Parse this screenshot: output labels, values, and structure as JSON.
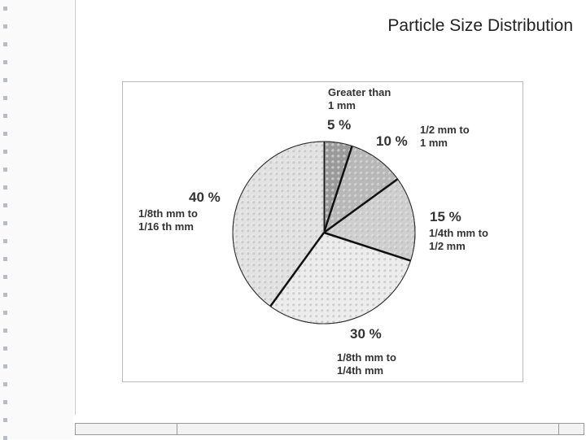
{
  "chart_data": {
    "type": "pie",
    "title": "Particle Size Distribution",
    "categories": [
      "Greater than\n1 mm",
      "1/2 mm to\n1 mm",
      "1/4th mm to\n1/2 mm",
      "1/8th mm to\n1/4th mm",
      "1/8th mm to\n1/16 th mm"
    ],
    "values": [
      5,
      10,
      15,
      30,
      40
    ],
    "value_labels": [
      "5 %",
      "10 %",
      "15 %",
      "30 %",
      "40 %"
    ],
    "colors": [
      "#9a9a9a",
      "#b8b8b8",
      "#cfcfcf",
      "#ececec",
      "#e2e2e2"
    ]
  }
}
